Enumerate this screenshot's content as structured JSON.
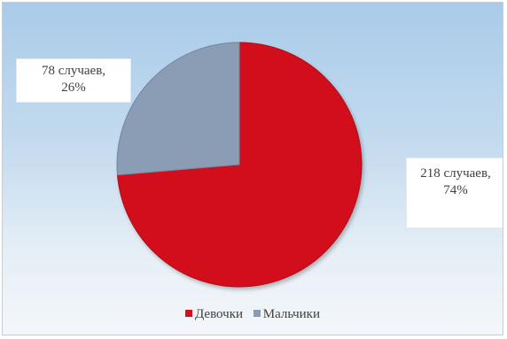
{
  "chart_data": {
    "type": "pie",
    "categories": [
      "Девочки",
      "Мальчики"
    ],
    "values": [
      218,
      78
    ],
    "data_labels": [
      {
        "line1": "218 случаев,",
        "line2": "74%"
      },
      {
        "line1": "78 случаев,",
        "line2": "26%"
      }
    ],
    "colors": [
      "#d2111b",
      "#8b9db5"
    ],
    "start_angle_deg": 0,
    "direction": "clockwise",
    "legend": {
      "position": "bottom",
      "entries": [
        "Девочки",
        "Мальчики"
      ]
    }
  }
}
